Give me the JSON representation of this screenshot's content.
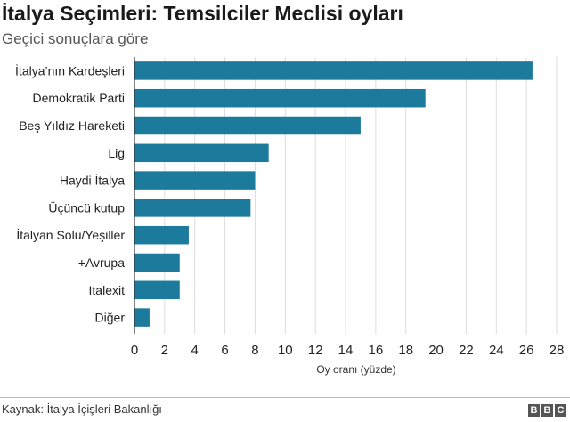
{
  "title": "İtalya Seçimleri: Temsilciler Meclisi oyları",
  "subtitle": "Geçici sonuçlara göre",
  "source": "Kaynak: İtalya İçişleri Bakanlığı",
  "logo": [
    "B",
    "B",
    "C"
  ],
  "colors": {
    "bar": "#1c7a9c",
    "grid": "#dddddd",
    "axis": "#333333"
  },
  "chart_data": {
    "type": "bar",
    "orientation": "horizontal",
    "categories": [
      "İtalya’nın Kardeşleri",
      "Demokratik Parti",
      "Beş Yıldız Hareketi",
      "Lig",
      "Haydi İtalya",
      "Üçüncü kutup",
      "İtalyan Solu/Yeşiller",
      "+Avrupa",
      "Italexit",
      "Diğer"
    ],
    "values": [
      26.4,
      19.3,
      15.0,
      8.9,
      8.0,
      7.7,
      3.6,
      3.0,
      3.0,
      1.0
    ],
    "xlabel": "Oy oranı (yüzde)",
    "xlim": [
      0,
      28
    ],
    "xticks": [
      0,
      2,
      4,
      6,
      8,
      10,
      12,
      14,
      16,
      18,
      20,
      22,
      24,
      26,
      28
    ],
    "grid": true
  }
}
